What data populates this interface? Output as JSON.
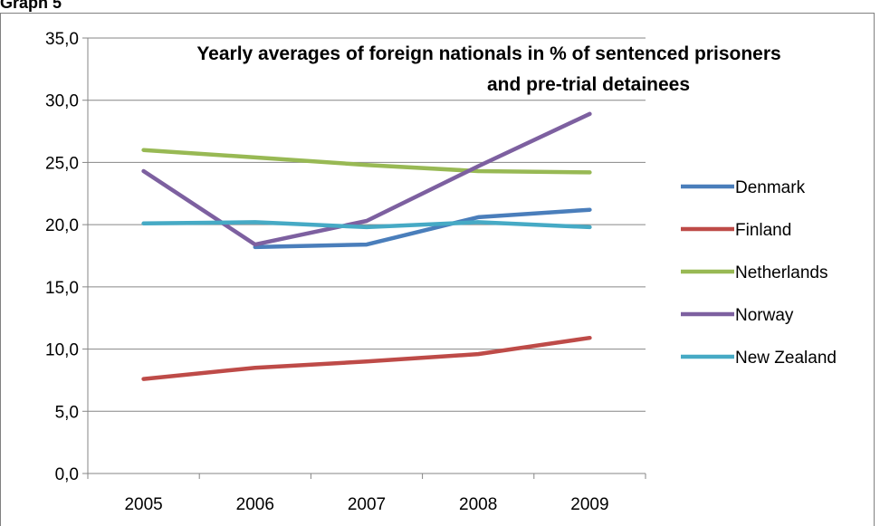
{
  "page": {
    "heading": "Graph 5"
  },
  "chart_data": {
    "type": "line",
    "title_line1": "Yearly averages of foreign nationals in % of sentenced prisoners",
    "title_line2": "and pre-trial detainees",
    "categories": [
      "2005",
      "2006",
      "2007",
      "2008",
      "2009"
    ],
    "ylim": [
      0,
      35
    ],
    "yticks": [
      0,
      5,
      10,
      15,
      20,
      25,
      30,
      35
    ],
    "ytick_labels": [
      "0,0",
      "5,0",
      "10,0",
      "15,0",
      "20,0",
      "25,0",
      "30,0",
      "35,0"
    ],
    "grid": true,
    "legend_position": "right",
    "series": [
      {
        "name": "Denmark",
        "color": "#4a7ebb",
        "values": [
          null,
          18.2,
          18.4,
          20.6,
          21.2
        ]
      },
      {
        "name": "Finland",
        "color": "#be4b48",
        "values": [
          7.6,
          8.5,
          9.0,
          9.6,
          10.9
        ]
      },
      {
        "name": "Netherlands",
        "color": "#98b954",
        "values": [
          26.0,
          25.4,
          24.8,
          24.3,
          24.2
        ]
      },
      {
        "name": "Norway",
        "color": "#7d60a0",
        "values": [
          24.3,
          18.4,
          20.3,
          24.7,
          28.9
        ]
      },
      {
        "name": "New Zealand",
        "color": "#46aac5",
        "values": [
          20.1,
          20.2,
          19.8,
          20.2,
          19.8
        ]
      }
    ]
  }
}
